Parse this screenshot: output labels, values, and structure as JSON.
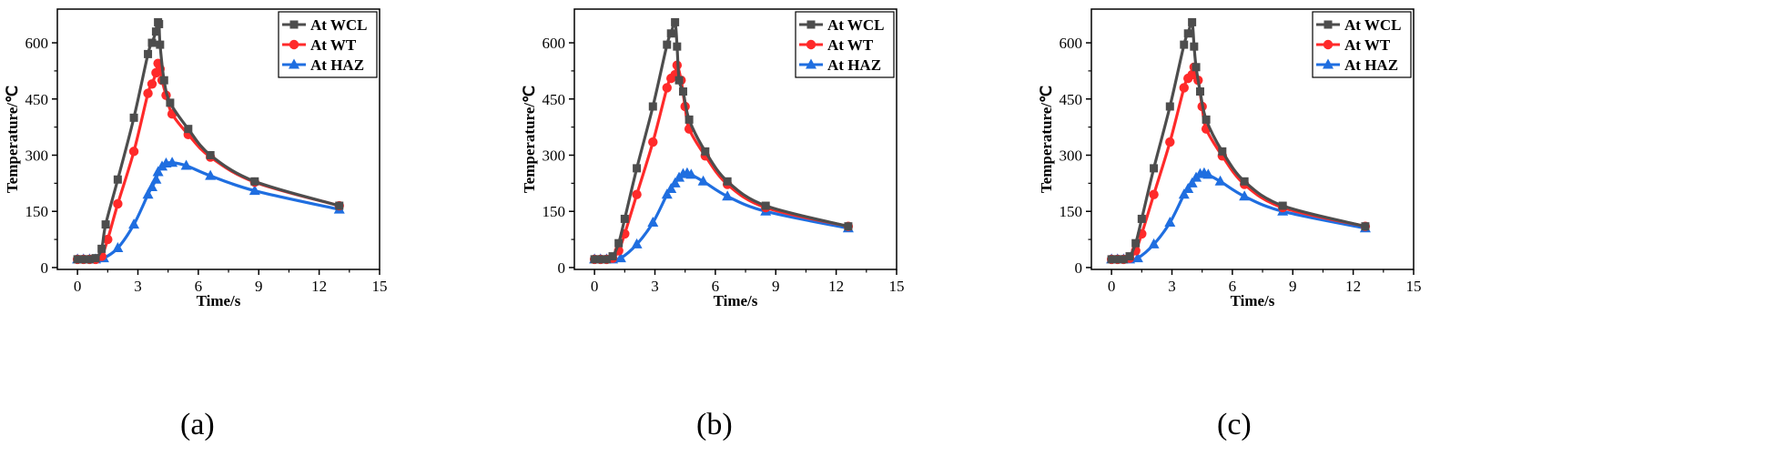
{
  "chart_data": [
    {
      "type": "line",
      "panel_label": "(a)",
      "xlabel": "Time/s",
      "ylabel": "Temperature/℃",
      "xlim": [
        -1,
        15
      ],
      "ylim": [
        -5,
        690
      ],
      "xticks": [
        0,
        3,
        6,
        9,
        12,
        15
      ],
      "yticks": [
        0,
        150,
        300,
        450,
        600
      ],
      "legend_position": "top-right",
      "series": [
        {
          "name": "At WCL",
          "color": "#4d4d4d",
          "marker": "square",
          "x": [
            0,
            0.3,
            0.6,
            0.9,
            1.2,
            1.4,
            2.0,
            2.8,
            3.5,
            3.7,
            3.9,
            4.0,
            4.05,
            4.1,
            4.3,
            4.6,
            5.5,
            6.6,
            8.8,
            13.0
          ],
          "y": [
            22,
            22,
            22,
            25,
            50,
            115,
            235,
            400,
            570,
            600,
            630,
            655,
            650,
            595,
            500,
            440,
            370,
            300,
            230,
            165
          ]
        },
        {
          "name": "At WT",
          "color": "#ff2a2a",
          "marker": "circle",
          "x": [
            0,
            0.3,
            0.6,
            0.9,
            1.2,
            1.5,
            2.0,
            2.8,
            3.5,
            3.7,
            3.9,
            4.0,
            4.1,
            4.2,
            4.4,
            4.7,
            5.5,
            6.6,
            8.8,
            13.0
          ],
          "y": [
            22,
            22,
            22,
            22,
            30,
            75,
            170,
            310,
            465,
            490,
            520,
            545,
            530,
            500,
            460,
            410,
            355,
            295,
            228,
            165
          ]
        },
        {
          "name": "At HAZ",
          "color": "#1f6ee0",
          "marker": "triangle",
          "x": [
            0,
            0.3,
            0.6,
            0.9,
            1.3,
            2.0,
            2.8,
            3.5,
            3.7,
            3.9,
            4.0,
            4.2,
            4.4,
            4.7,
            5.4,
            6.6,
            8.8,
            13.0
          ],
          "y": [
            22,
            22,
            22,
            22,
            25,
            52,
            115,
            195,
            215,
            235,
            255,
            270,
            278,
            280,
            272,
            245,
            205,
            155
          ]
        }
      ]
    },
    {
      "type": "line",
      "panel_label": "(b)",
      "xlabel": "Time/s",
      "ylabel": "Temperature/℃",
      "xlim": [
        -1,
        15
      ],
      "ylim": [
        -5,
        690
      ],
      "xticks": [
        0,
        3,
        6,
        9,
        12,
        15
      ],
      "yticks": [
        0,
        150,
        300,
        450,
        600
      ],
      "legend_position": "top-right",
      "series": [
        {
          "name": "At WCL",
          "color": "#4d4d4d",
          "marker": "square",
          "x": [
            0,
            0.3,
            0.6,
            0.9,
            1.2,
            1.5,
            2.1,
            2.9,
            3.6,
            3.8,
            4.0,
            4.1,
            4.2,
            4.4,
            4.7,
            5.5,
            6.6,
            8.5,
            12.6
          ],
          "y": [
            22,
            22,
            22,
            30,
            65,
            130,
            265,
            430,
            595,
            625,
            655,
            590,
            500,
            470,
            395,
            310,
            230,
            165,
            110
          ]
        },
        {
          "name": "At WT",
          "color": "#ff2a2a",
          "marker": "circle",
          "x": [
            0,
            0.3,
            0.6,
            0.9,
            1.2,
            1.5,
            2.1,
            2.9,
            3.6,
            3.8,
            4.0,
            4.1,
            4.3,
            4.5,
            4.7,
            5.5,
            6.6,
            8.5,
            12.6
          ],
          "y": [
            22,
            22,
            22,
            25,
            45,
            90,
            195,
            335,
            480,
            505,
            515,
            540,
            500,
            430,
            370,
            298,
            222,
            160,
            110
          ]
        },
        {
          "name": "At HAZ",
          "color": "#1f6ee0",
          "marker": "triangle",
          "x": [
            0,
            0.3,
            0.6,
            0.9,
            1.3,
            2.1,
            2.9,
            3.6,
            3.8,
            4.0,
            4.2,
            4.4,
            4.6,
            4.8,
            5.4,
            6.6,
            8.5,
            12.6
          ],
          "y": [
            22,
            22,
            22,
            22,
            25,
            62,
            120,
            195,
            210,
            225,
            240,
            250,
            252,
            248,
            230,
            190,
            150,
            105
          ]
        }
      ]
    },
    {
      "type": "line",
      "panel_label": "(c)",
      "xlabel": "Time/s",
      "ylabel": "Temperature/℃",
      "xlim": [
        -1,
        15
      ],
      "ylim": [
        -5,
        690
      ],
      "xticks": [
        0,
        3,
        6,
        9,
        12,
        15
      ],
      "yticks": [
        0,
        150,
        300,
        450,
        600
      ],
      "legend_position": "top-right",
      "series": [
        {
          "name": "At WCL",
          "color": "#4d4d4d",
          "marker": "square",
          "x": [
            0,
            0.3,
            0.6,
            0.9,
            1.2,
            1.5,
            2.1,
            2.9,
            3.6,
            3.8,
            4.0,
            4.1,
            4.2,
            4.4,
            4.7,
            5.5,
            6.6,
            8.5,
            12.6
          ],
          "y": [
            22,
            22,
            22,
            30,
            65,
            130,
            265,
            430,
            595,
            625,
            655,
            590,
            535,
            470,
            395,
            310,
            230,
            165,
            110
          ]
        },
        {
          "name": "At WT",
          "color": "#ff2a2a",
          "marker": "circle",
          "x": [
            0,
            0.3,
            0.6,
            0.9,
            1.2,
            1.5,
            2.1,
            2.9,
            3.6,
            3.8,
            4.0,
            4.1,
            4.3,
            4.5,
            4.7,
            5.5,
            6.6,
            8.5,
            12.6
          ],
          "y": [
            22,
            22,
            22,
            25,
            45,
            90,
            195,
            335,
            480,
            505,
            515,
            535,
            500,
            430,
            370,
            298,
            222,
            160,
            110
          ]
        },
        {
          "name": "At HAZ",
          "color": "#1f6ee0",
          "marker": "triangle",
          "x": [
            0,
            0.3,
            0.6,
            0.9,
            1.3,
            2.1,
            2.9,
            3.6,
            3.8,
            4.0,
            4.2,
            4.4,
            4.6,
            4.8,
            5.4,
            6.6,
            8.5,
            12.6
          ],
          "y": [
            22,
            22,
            22,
            22,
            25,
            62,
            120,
            195,
            210,
            225,
            240,
            250,
            252,
            248,
            230,
            190,
            150,
            105
          ]
        }
      ]
    }
  ]
}
